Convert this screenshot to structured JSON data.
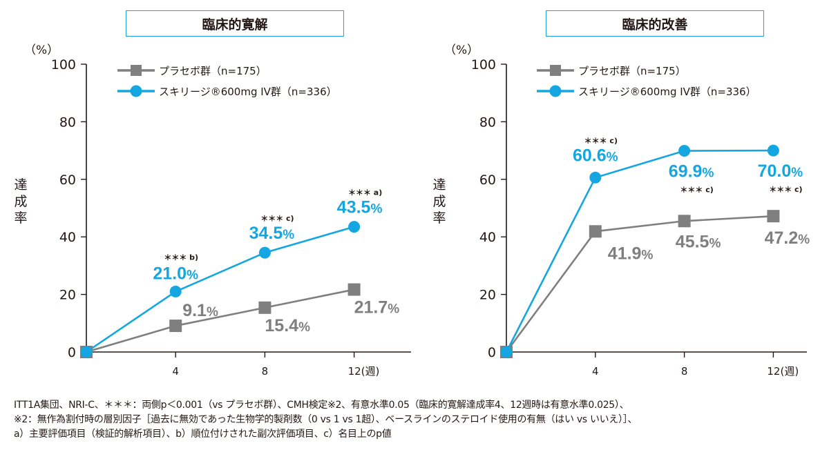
{
  "colors": {
    "placebo": "#7f7f80",
    "treatment": "#13a6e0",
    "axis": "#231815",
    "title_border": "#1aa3dc"
  },
  "chart_data": [
    {
      "type": "line",
      "title": "臨床的寛解",
      "unit_label": "（%）",
      "ylabel": "達成率",
      "xlabel": "(週)",
      "x": [
        0,
        4,
        8,
        12
      ],
      "x_tick_labels": [
        "4",
        "8",
        "12(週)"
      ],
      "y_ticks": [
        0,
        20,
        40,
        60,
        80,
        100
      ],
      "ylim": [
        0,
        100
      ],
      "legend_position": "top-left",
      "series": [
        {
          "name": "プラセボ群（n=175）",
          "marker": "square",
          "values": [
            0,
            9.1,
            15.4,
            21.7
          ],
          "labels": [
            "",
            "9.1",
            "15.4",
            "21.7"
          ],
          "annotations": [
            "",
            "",
            "",
            ""
          ]
        },
        {
          "name": "スキリージ®600mg IV群（n=336）",
          "marker": "circle",
          "values": [
            0,
            21.0,
            34.5,
            43.5
          ],
          "labels": [
            "",
            "21.0",
            "34.5",
            "43.5"
          ],
          "annotations": [
            "",
            "＊＊＊ b)",
            "＊＊＊ c)",
            "＊＊＊ a)"
          ]
        }
      ]
    },
    {
      "type": "line",
      "title": "臨床的改善",
      "unit_label": "（%）",
      "ylabel": "達成率",
      "xlabel": "(週)",
      "x": [
        0,
        4,
        8,
        12
      ],
      "x_tick_labels": [
        "4",
        "8",
        "12(週)"
      ],
      "y_ticks": [
        0,
        20,
        40,
        60,
        80,
        100
      ],
      "ylim": [
        0,
        100
      ],
      "legend_position": "top-left",
      "series": [
        {
          "name": "プラセボ群（n=175）",
          "marker": "square",
          "values": [
            0,
            41.9,
            45.5,
            47.2
          ],
          "labels": [
            "",
            "41.9",
            "45.5",
            "47.2"
          ],
          "annotations": [
            "",
            "",
            "",
            ""
          ]
        },
        {
          "name": "スキリージ®600mg IV群（n=336）",
          "marker": "circle",
          "values": [
            0,
            60.6,
            69.9,
            70.0
          ],
          "labels": [
            "",
            "60.6",
            "69.9",
            "70.0"
          ],
          "annotations": [
            "",
            "＊＊＊ c)",
            "＊＊＊ c)",
            "＊＊＊ c)"
          ]
        }
      ]
    }
  ],
  "percent_sign": "%",
  "footnotes": [
    "ITT1A集団、NRI-C、＊＊＊：両側p＜0.001（vs プラセボ群）、CMH検定※2、有意水準0.05（臨床的寛解達成率4、12週時は有意水準0.025）、",
    "※2：無作為割付時の層別因子［過去に無効であった生物学的製剤数（0 vs 1 vs 1超）、ベースラインのステロイド使用の有無（はい vs いいえ）］、",
    "a）主要評価項目（検証的解析項目）、b）順位付けされた副次評価項目、c）名目上のp値"
  ]
}
